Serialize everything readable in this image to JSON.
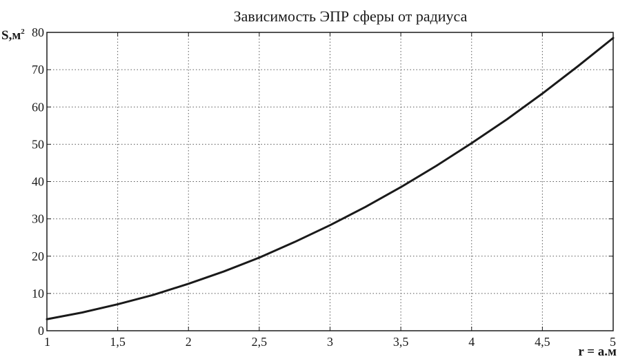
{
  "chart_data": {
    "type": "line",
    "title": "Зависимость ЭПР сферы от радиуса",
    "xlabel": "r = a.м",
    "ylabel": "S,м",
    "ylabel_sup": "2",
    "xlim": [
      1,
      5
    ],
    "ylim": [
      0,
      80
    ],
    "x_ticks": [
      1,
      1.5,
      2,
      2.5,
      3,
      3.5,
      4,
      4.5,
      5
    ],
    "x_tick_labels": [
      "1",
      "1,5",
      "2",
      "2,5",
      "3",
      "3,5",
      "4",
      "4,5",
      "5"
    ],
    "y_ticks": [
      0,
      10,
      20,
      30,
      40,
      50,
      60,
      70,
      80
    ],
    "y_tick_labels": [
      "0",
      "10",
      "20",
      "30",
      "40",
      "50",
      "60",
      "70",
      "80"
    ],
    "grid": true,
    "series": [
      {
        "color": "#1a1a1a",
        "x": [
          1,
          1.25,
          1.5,
          1.75,
          2,
          2.25,
          2.5,
          2.75,
          3,
          3.25,
          3.5,
          3.75,
          4,
          4.25,
          4.5,
          4.75,
          5
        ],
        "y": [
          3.1,
          4.9,
          7.1,
          9.6,
          12.6,
          15.9,
          19.6,
          23.8,
          28.3,
          33.2,
          38.5,
          44.2,
          50.3,
          56.7,
          63.6,
          70.9,
          78.5
        ]
      }
    ]
  }
}
